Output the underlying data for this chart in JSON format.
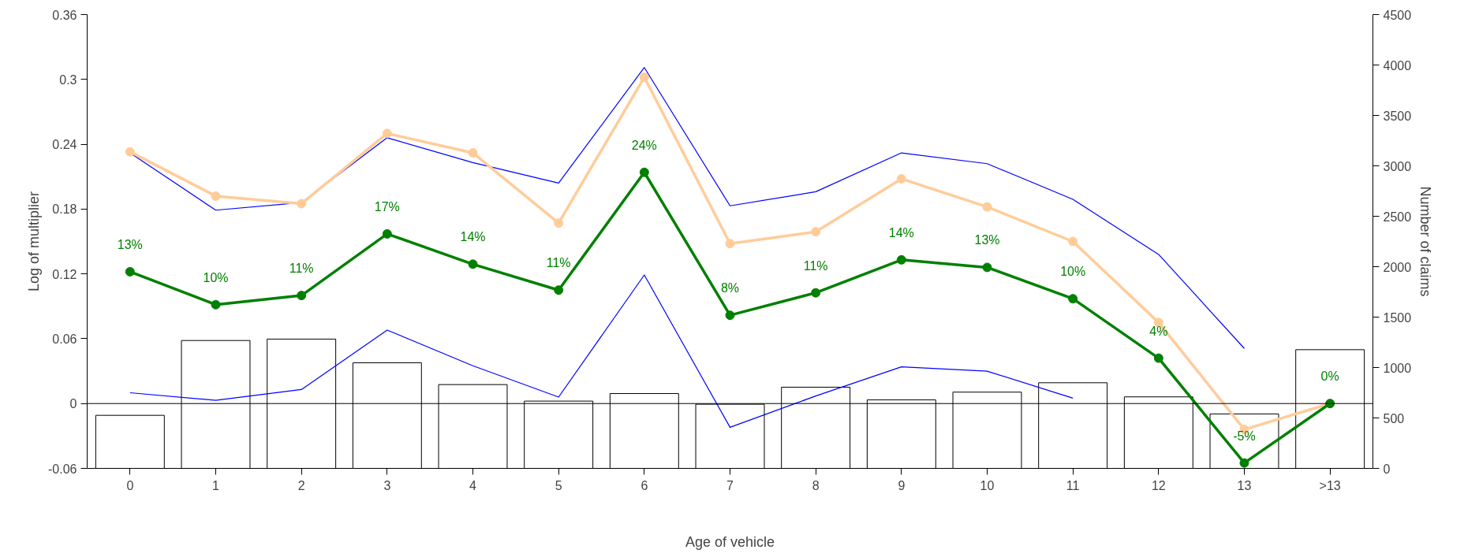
{
  "chart_data": {
    "type": "line",
    "xlabel": "Age of vehicle",
    "ylabel": "Log of multiplier",
    "y2label": "Number of claims",
    "categories": [
      "0",
      "1",
      "2",
      "3",
      "4",
      "5",
      "6",
      "7",
      "8",
      "9",
      "10",
      "11",
      "12",
      "13",
      ">13"
    ],
    "ylim": [
      -0.06,
      0.36
    ],
    "yticks": [
      -0.06,
      0,
      0.06,
      0.12,
      0.18,
      0.24,
      0.3,
      0.36
    ],
    "y2lim": [
      0,
      4500
    ],
    "y2ticks": [
      0,
      500,
      1000,
      1500,
      2000,
      2500,
      3000,
      3500,
      4000,
      4500
    ],
    "grid": false,
    "annotations": [
      {
        "text": "13%",
        "x": "0",
        "y": 0.122
      },
      {
        "text": "10%",
        "x": "1",
        "y": 0.0915
      },
      {
        "text": "11%",
        "x": "2",
        "y": 0.1
      },
      {
        "text": "17%",
        "x": "3",
        "y": 0.157
      },
      {
        "text": "14%",
        "x": "4",
        "y": 0.129
      },
      {
        "text": "11%",
        "x": "5",
        "y": 0.105
      },
      {
        "text": "24%",
        "x": "6",
        "y": 0.214
      },
      {
        "text": "8%",
        "x": "7",
        "y": 0.0817
      },
      {
        "text": "11%",
        "x": "8",
        "y": 0.1025
      },
      {
        "text": "14%",
        "x": "9",
        "y": 0.133
      },
      {
        "text": "13%",
        "x": "10",
        "y": 0.126
      },
      {
        "text": "10%",
        "x": "11",
        "y": 0.097
      },
      {
        "text": "4%",
        "x": "12",
        "y": 0.042
      },
      {
        "text": "-5%",
        "x": "13",
        "y": -0.055
      },
      {
        "text": "0%",
        "x": ">13",
        "y": 0
      }
    ],
    "ref_lines": [
      {
        "axis": "y",
        "value": 0,
        "color": "#000000"
      }
    ],
    "series": [
      {
        "type": "bar",
        "axis": "y2",
        "color": "#ffffff",
        "values": [
          526,
          1268,
          1282,
          1047,
          831,
          667,
          742,
          636,
          805,
          679,
          756,
          849,
          709,
          540,
          1177
        ]
      },
      {
        "color": "#0000ff",
        "marker": "none",
        "values": [
          0.232,
          0.179,
          0.186,
          0.246,
          0.223,
          0.204,
          0.311,
          0.183,
          0.196,
          0.232,
          0.222,
          0.189,
          0.138,
          0.051,
          null
        ]
      },
      {
        "color": "#0000ff",
        "marker": "none",
        "values": [
          0.01,
          0.003,
          0.013,
          0.068,
          0.035,
          0.006,
          0.119,
          -0.022,
          0.007,
          0.034,
          0.03,
          0.005,
          null,
          null,
          null
        ]
      },
      {
        "color": "#ffcc99",
        "marker": "circle",
        "values": [
          0.233,
          0.192,
          0.185,
          0.25,
          0.232,
          0.167,
          0.302,
          0.148,
          0.159,
          0.208,
          0.182,
          0.15,
          0.075,
          -0.024,
          0
        ]
      },
      {
        "color": "#008000",
        "marker": "circle",
        "values": [
          0.122,
          0.0915,
          0.1,
          0.157,
          0.129,
          0.105,
          0.214,
          0.0817,
          0.1025,
          0.133,
          0.126,
          0.097,
          0.042,
          -0.055,
          0
        ]
      }
    ]
  }
}
